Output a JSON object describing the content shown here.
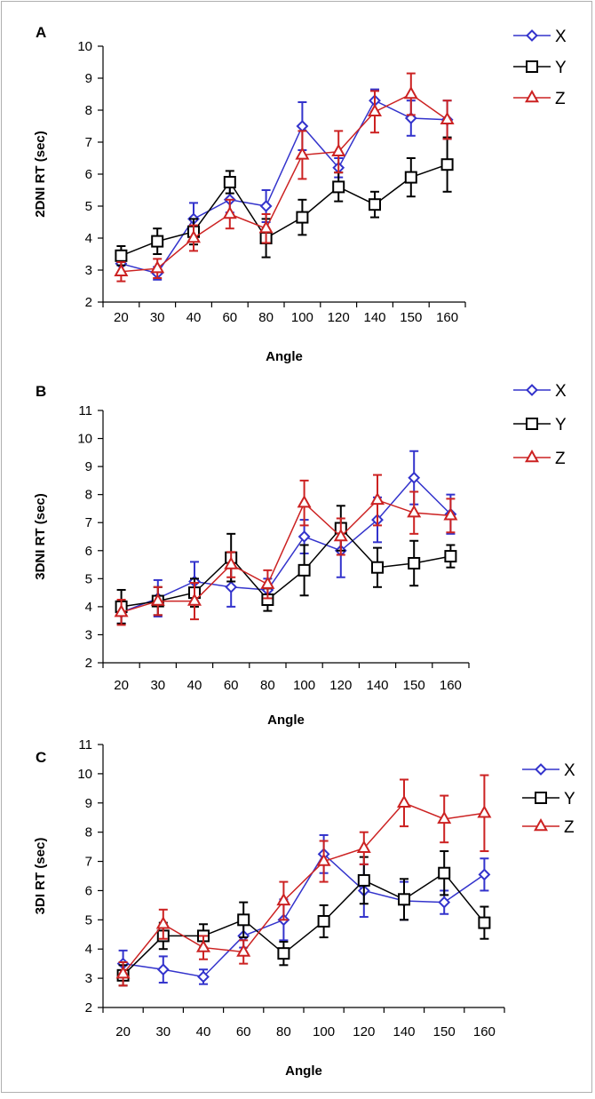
{
  "figure": {
    "panels": [
      {
        "letter": "A",
        "x_title": "Angle",
        "y_title": "2DNI RT (sec)"
      },
      {
        "letter": "B",
        "x_title": "Angle",
        "y_title": "3DNI RT (sec)"
      },
      {
        "letter": "C",
        "x_title": "Angle",
        "y_title": "3DI RT (sec)"
      }
    ]
  },
  "chart_data": [
    {
      "type": "line",
      "title": "",
      "panel_label": "A",
      "xlabel": "Angle",
      "ylabel": "2DNI RT (sec)",
      "categories": [
        "20",
        "30",
        "40",
        "60",
        "80",
        "100",
        "120",
        "140",
        "150",
        "160"
      ],
      "ylim": [
        2,
        10
      ],
      "yticks": [
        2,
        3,
        4,
        5,
        6,
        7,
        8,
        9,
        10
      ],
      "grid": false,
      "legend_position": "top-right",
      "series": [
        {
          "name": "X",
          "color": "#3333cc",
          "marker": "diamond",
          "values": [
            3.2,
            2.9,
            4.6,
            5.2,
            5.0,
            7.5,
            6.2,
            8.3,
            7.75,
            7.7
          ],
          "errors": [
            0.3,
            0.2,
            0.5,
            0.4,
            0.5,
            0.75,
            0.3,
            0.35,
            0.55,
            0.6
          ]
        },
        {
          "name": "Y",
          "color": "#000000",
          "marker": "square",
          "values": [
            3.45,
            3.9,
            4.2,
            5.75,
            4.0,
            4.65,
            5.6,
            5.05,
            5.9,
            6.3
          ],
          "errors": [
            0.3,
            0.4,
            0.4,
            0.35,
            0.6,
            0.55,
            0.45,
            0.4,
            0.6,
            0.85
          ]
        },
        {
          "name": "Z",
          "color": "#cc2222",
          "marker": "triangle",
          "values": [
            2.95,
            3.05,
            4.0,
            4.75,
            4.3,
            6.6,
            6.7,
            7.95,
            8.5,
            7.7
          ],
          "errors": [
            0.3,
            0.3,
            0.4,
            0.45,
            0.45,
            0.75,
            0.65,
            0.65,
            0.65,
            0.6
          ]
        }
      ]
    },
    {
      "type": "line",
      "title": "",
      "panel_label": "B",
      "xlabel": "Angle",
      "ylabel": "3DNI RT (sec)",
      "categories": [
        "20",
        "30",
        "40",
        "60",
        "80",
        "100",
        "120",
        "140",
        "150",
        "160"
      ],
      "ylim": [
        2,
        11
      ],
      "yticks": [
        2,
        3,
        4,
        5,
        6,
        7,
        8,
        9,
        10,
        11
      ],
      "grid": false,
      "legend_position": "top-right",
      "series": [
        {
          "name": "X",
          "color": "#3333cc",
          "marker": "diamond",
          "values": [
            3.8,
            4.3,
            4.9,
            4.7,
            4.6,
            6.5,
            6.0,
            7.1,
            8.6,
            7.3
          ],
          "errors": [
            0.4,
            0.65,
            0.7,
            0.7,
            0.4,
            0.6,
            0.95,
            0.8,
            0.95,
            0.7
          ]
        },
        {
          "name": "Y",
          "color": "#000000",
          "marker": "square",
          "values": [
            4.0,
            4.2,
            4.5,
            5.75,
            4.25,
            5.3,
            6.8,
            5.4,
            5.55,
            5.8
          ],
          "errors": [
            0.6,
            0.5,
            0.5,
            0.85,
            0.4,
            0.9,
            0.8,
            0.7,
            0.8,
            0.4
          ]
        },
        {
          "name": "Z",
          "color": "#cc2222",
          "marker": "triangle",
          "values": [
            3.8,
            4.2,
            4.2,
            5.5,
            4.8,
            7.7,
            6.5,
            7.8,
            7.35,
            7.25
          ],
          "errors": [
            0.45,
            0.5,
            0.65,
            0.45,
            0.5,
            0.8,
            0.65,
            0.9,
            0.75,
            0.6
          ]
        }
      ]
    },
    {
      "type": "line",
      "title": "",
      "panel_label": "C",
      "xlabel": "Angle",
      "ylabel": "3DI RT (sec)",
      "categories": [
        "20",
        "30",
        "40",
        "60",
        "80",
        "100",
        "120",
        "140",
        "150",
        "160"
      ],
      "ylim": [
        2,
        11
      ],
      "yticks": [
        2,
        3,
        4,
        5,
        6,
        7,
        8,
        9,
        10,
        11
      ],
      "grid": false,
      "legend_position": "top-right",
      "series": [
        {
          "name": "X",
          "color": "#3333cc",
          "marker": "diamond",
          "values": [
            3.5,
            3.3,
            3.05,
            4.45,
            5.0,
            7.25,
            6.0,
            5.65,
            5.6,
            6.55
          ],
          "errors": [
            0.45,
            0.45,
            0.25,
            0.4,
            0.7,
            0.65,
            0.9,
            0.65,
            0.4,
            0.55
          ]
        },
        {
          "name": "Y",
          "color": "#000000",
          "marker": "square",
          "values": [
            3.1,
            4.45,
            4.45,
            5.0,
            3.85,
            4.95,
            6.35,
            5.7,
            6.6,
            4.9
          ],
          "errors": [
            0.35,
            0.45,
            0.4,
            0.6,
            0.4,
            0.55,
            0.8,
            0.7,
            0.75,
            0.55
          ]
        },
        {
          "name": "Z",
          "color": "#cc2222",
          "marker": "triangle",
          "values": [
            3.15,
            4.85,
            4.05,
            3.9,
            5.65,
            7.0,
            7.45,
            9.0,
            8.45,
            8.65
          ],
          "errors": [
            0.4,
            0.5,
            0.4,
            0.4,
            0.65,
            0.7,
            0.55,
            0.8,
            0.8,
            1.3
          ]
        }
      ]
    }
  ]
}
